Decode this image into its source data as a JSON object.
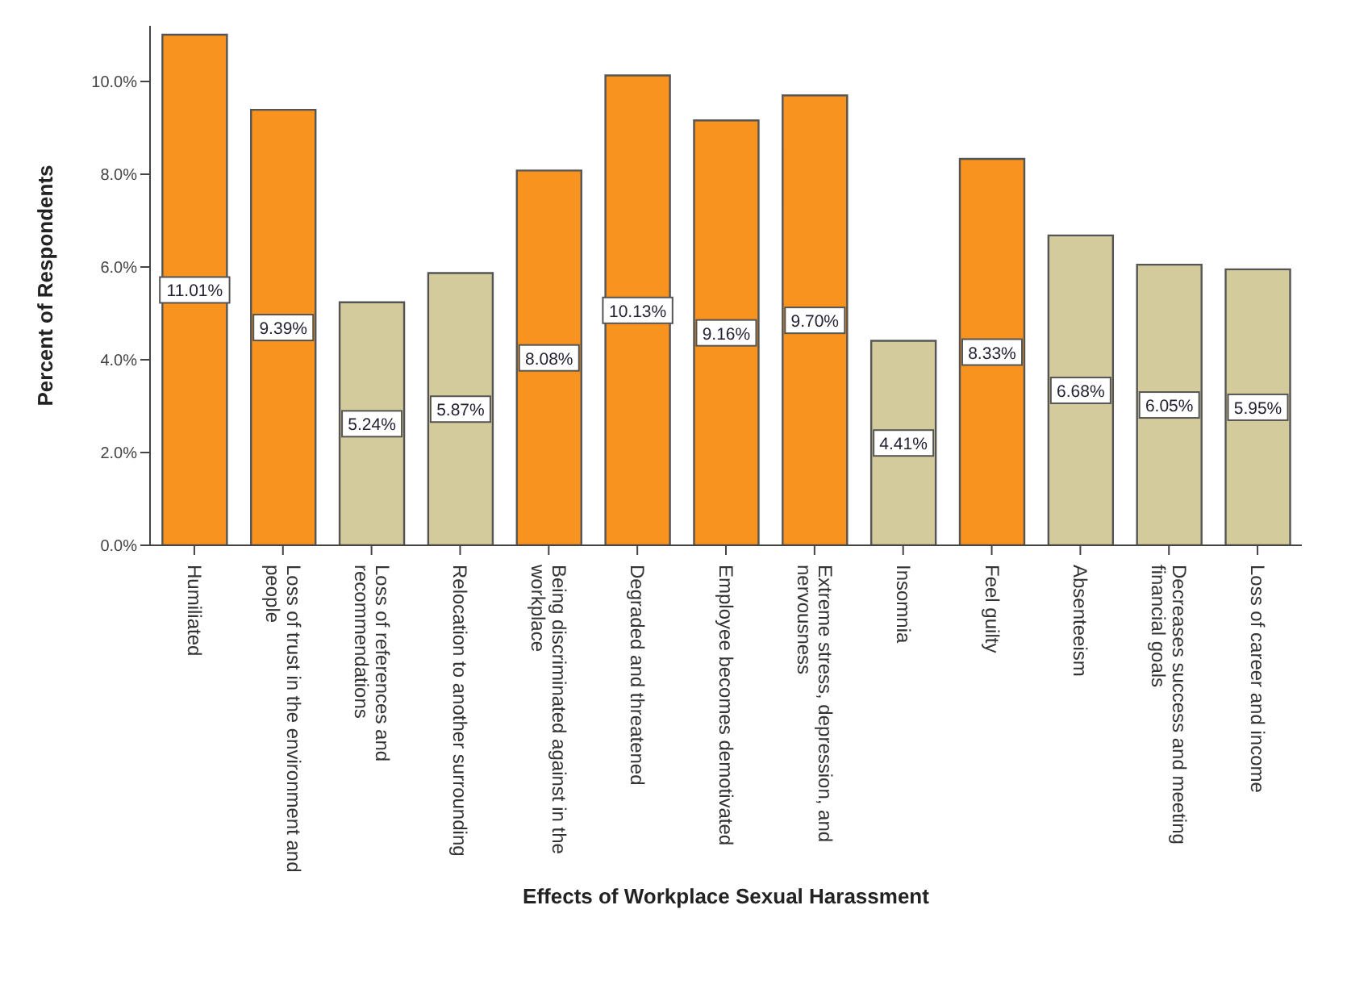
{
  "chart_data": {
    "type": "bar",
    "xlabel": "Effects of Workplace Sexual Harassment",
    "ylabel": "Percent of Respondents",
    "categories": [
      "Humiliated",
      "Loss of trust in the environment and\npeople",
      "Loss of references and\nrecommendations",
      "Relocation to another surrounding",
      "Being discriminated against in the\nworkplace",
      "Degraded and threatened",
      "Employee becomes demotivated",
      "Extreme stress, depression, and\nnervousness",
      "Insomnia",
      "Feel guilty",
      "Absenteeism",
      "Decreases success and meeting\nfinancial goals",
      "Loss of career and income"
    ],
    "values": [
      11.01,
      9.39,
      5.24,
      5.87,
      8.08,
      10.13,
      9.16,
      9.7,
      4.41,
      8.33,
      6.68,
      6.05,
      5.95
    ],
    "value_labels": [
      "11.01%",
      "9.39%",
      "5.24%",
      "5.87%",
      "8.08%",
      "10.13%",
      "9.16%",
      "9.70%",
      "4.41%",
      "8.33%",
      "6.68%",
      "6.05%",
      "5.95%"
    ],
    "colors": [
      "#f7931e",
      "#f7931e",
      "#d4cb9c",
      "#d4cb9c",
      "#f7931e",
      "#f7931e",
      "#f7931e",
      "#f7931e",
      "#d4cb9c",
      "#f7931e",
      "#d4cb9c",
      "#d4cb9c",
      "#d4cb9c"
    ],
    "ylim": [
      0,
      11.2
    ],
    "yticks": [
      {
        "value": 0,
        "label": "0.0%"
      },
      {
        "value": 2,
        "label": "2.0%"
      },
      {
        "value": 4,
        "label": "4.0%"
      },
      {
        "value": 6,
        "label": "6.0%"
      },
      {
        "value": 8,
        "label": "8.0%"
      },
      {
        "value": 10,
        "label": "10.0%"
      }
    ],
    "grid": false,
    "legend": false
  }
}
